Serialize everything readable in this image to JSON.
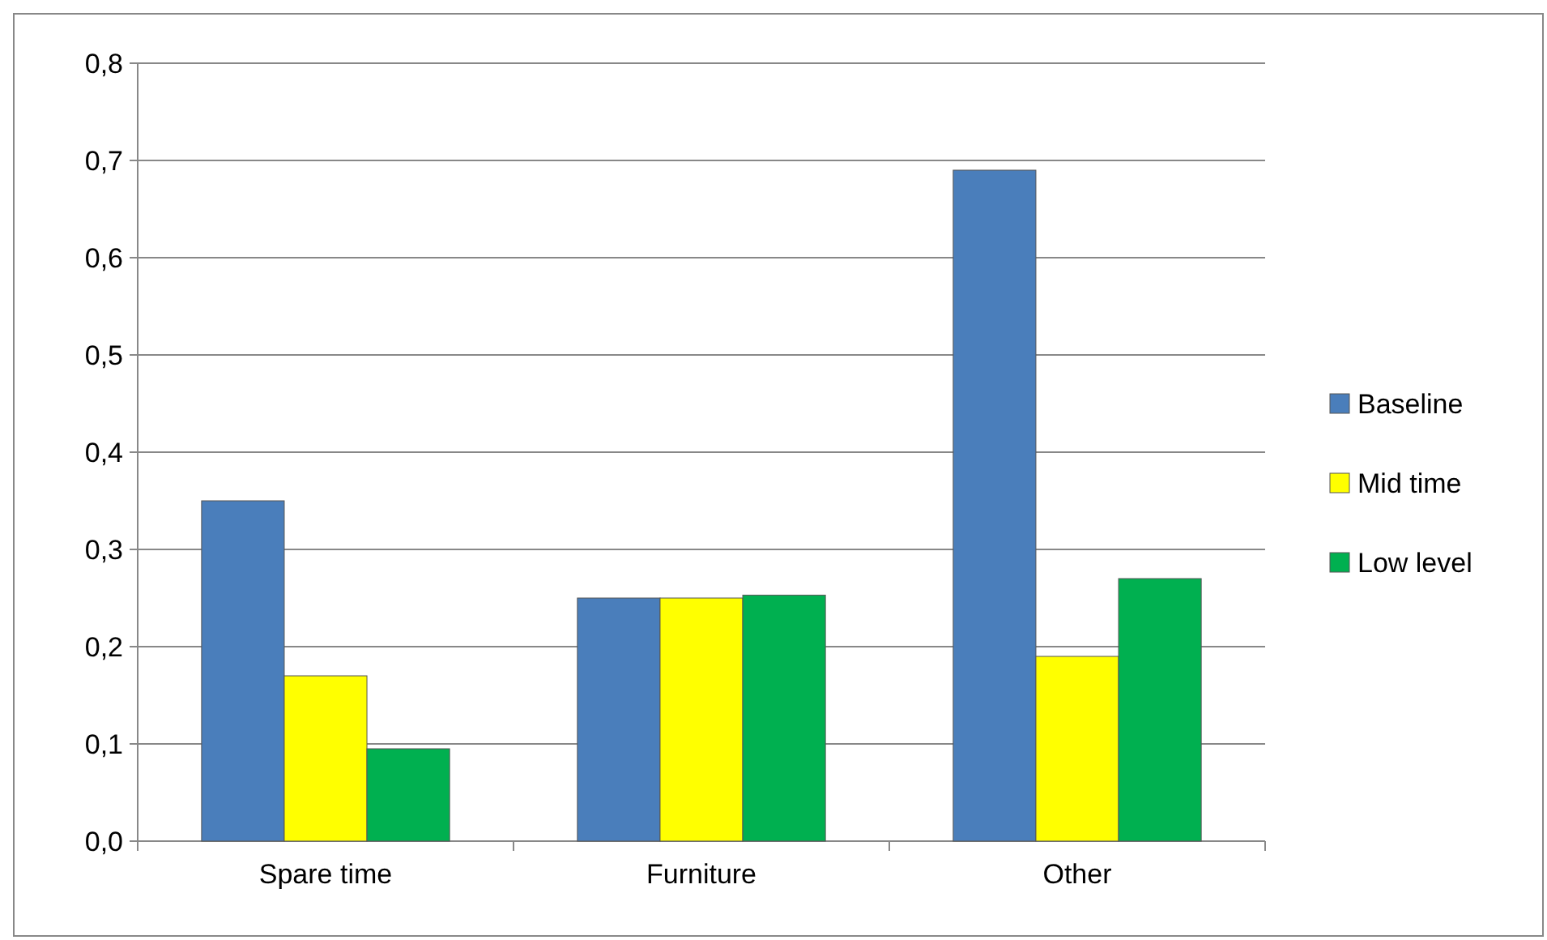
{
  "chart_data": {
    "type": "bar",
    "categories": [
      "Spare time",
      "Furniture",
      "Other"
    ],
    "series": [
      {
        "name": "Baseline",
        "color": "#4a7ebb",
        "values": [
          0.35,
          0.25,
          0.69
        ]
      },
      {
        "name": "Mid time",
        "color": "#ffff00",
        "values": [
          0.17,
          0.25,
          0.19
        ]
      },
      {
        "name": "Low level",
        "color": "#00b050",
        "values": [
          0.095,
          0.253,
          0.27
        ]
      }
    ],
    "ylim": [
      0,
      0.8
    ],
    "yticks": [
      {
        "value": 0,
        "label": "0,0"
      },
      {
        "value": 0.1,
        "label": "0,1"
      },
      {
        "value": 0.2,
        "label": "0,2"
      },
      {
        "value": 0.3,
        "label": "0,3"
      },
      {
        "value": 0.4,
        "label": "0,4"
      },
      {
        "value": 0.5,
        "label": "0,5"
      },
      {
        "value": 0.6,
        "label": "0,6"
      },
      {
        "value": 0.7,
        "label": "0,7"
      },
      {
        "value": 0.8,
        "label": "0,8"
      }
    ],
    "grid": "y",
    "legend": "right"
  }
}
